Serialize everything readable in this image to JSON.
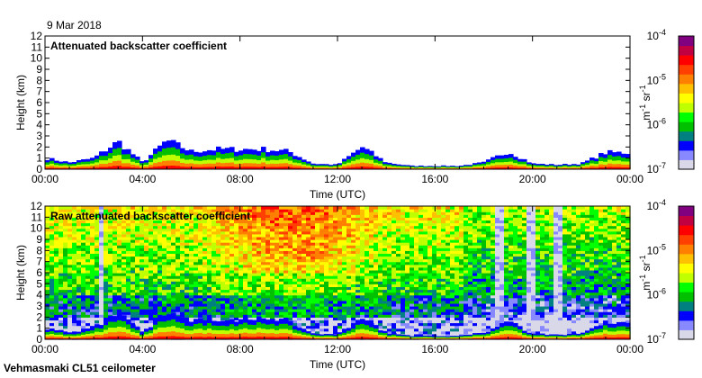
{
  "date": "9 Mar 2018",
  "footer": "Vehmasmaki CL51 ceilometer",
  "colors": {
    "scale": [
      "#d8d8e8",
      "#8888ff",
      "#0000ff",
      "#008080",
      "#00c000",
      "#00ff00",
      "#c0ff00",
      "#ffff00",
      "#ffc000",
      "#ff8000",
      "#ff4000",
      "#ff0000",
      "#c00040",
      "#800080"
    ]
  },
  "chart_data": [
    {
      "type": "heatmap",
      "title": "Attenuated backscatter coefficient",
      "xlabel": "Time (UTC)",
      "ylabel": "Height (km)",
      "x_ticks": [
        "00:00",
        "04:00",
        "08:00",
        "12:00",
        "16:00",
        "20:00",
        "00:00"
      ],
      "y_ticks": [
        "0",
        "1",
        "2",
        "3",
        "4",
        "5",
        "6",
        "7",
        "8",
        "9",
        "10",
        "11",
        "12"
      ],
      "xlim_hours": [
        0,
        24
      ],
      "ylim_km": [
        0,
        12
      ],
      "colorbar": {
        "label": "m-1 sr-1",
        "label_parts": [
          "m",
          "-1",
          " sr",
          "-1"
        ],
        "ticks": [
          {
            "base": "10",
            "exp": "-7"
          },
          {
            "base": "10",
            "exp": "-6"
          },
          {
            "base": "10",
            "exp": "-5"
          },
          {
            "base": "10",
            "exp": "-4"
          }
        ],
        "scale": "log"
      },
      "layer_top_km_by_hour": [
        1.0,
        0.6,
        1.0,
        2.5,
        0.6,
        2.6,
        1.6,
        1.8,
        1.8,
        1.8,
        1.6,
        0.5,
        0.4,
        2.0,
        0.6,
        0.3,
        0.3,
        0.3,
        0.6,
        1.6,
        0.5,
        0.4,
        0.5,
        1.5,
        1.5
      ]
    },
    {
      "type": "heatmap",
      "title": "Raw attenuated backscatter coefficient",
      "xlabel": "Time (UTC)",
      "ylabel": "Height (km)",
      "x_ticks": [
        "00:00",
        "04:00",
        "08:00",
        "12:00",
        "16:00",
        "20:00",
        "00:00"
      ],
      "y_ticks": [
        "0",
        "1",
        "2",
        "3",
        "4",
        "5",
        "6",
        "7",
        "8",
        "9",
        "10",
        "11",
        "12"
      ],
      "xlim_hours": [
        0,
        24
      ],
      "ylim_km": [
        0,
        12
      ],
      "colorbar": {
        "label": "m-1 sr-1",
        "label_parts": [
          "m",
          "-1",
          " sr",
          "-1"
        ],
        "ticks": [
          {
            "base": "10",
            "exp": "-7"
          },
          {
            "base": "10",
            "exp": "-6"
          },
          {
            "base": "10",
            "exp": "-5"
          },
          {
            "base": "10",
            "exp": "-4"
          }
        ],
        "scale": "log"
      },
      "noise_gaps_hours": [
        2.2,
        18.6,
        19.9,
        21.0
      ]
    }
  ]
}
